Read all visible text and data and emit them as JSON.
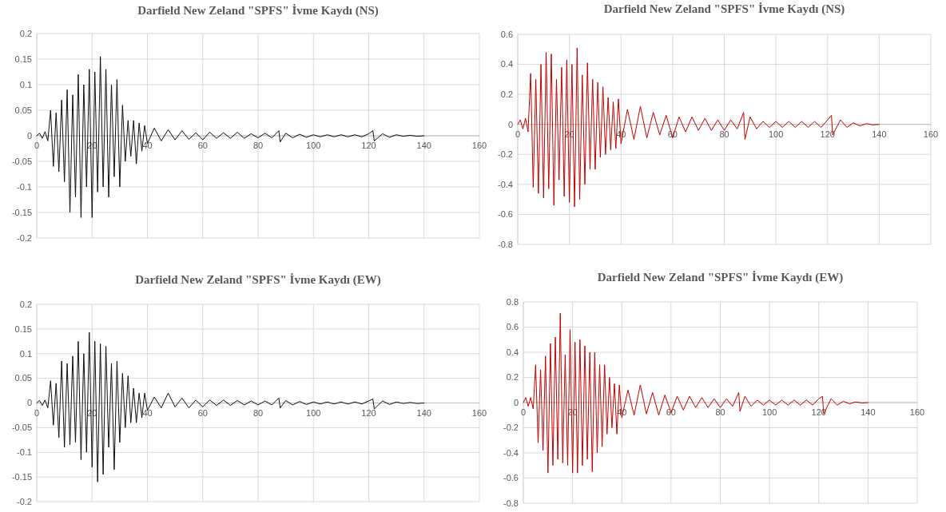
{
  "chart_data": [
    {
      "type": "line",
      "title": "Darfield New Zeland  \"SPFS\" İvme Kaydı (NS)",
      "xlim": [
        0,
        160
      ],
      "xticks": [
        0,
        20,
        40,
        60,
        80,
        100,
        120,
        140,
        160
      ],
      "ylim": [
        -0.2,
        0.2
      ],
      "yticks": [
        -0.2,
        -0.15,
        -0.1,
        -0.05,
        0,
        0.05,
        0.1,
        0.15,
        0.2
      ],
      "grid": true,
      "marker": "none",
      "line_style": "solid",
      "series": [
        {
          "color": "#0d0d0d",
          "x": [
            0,
            1,
            2,
            3,
            4,
            5,
            6,
            7,
            8,
            9,
            10,
            11,
            12,
            13,
            14,
            15,
            16,
            17,
            18,
            19,
            20,
            21,
            22,
            23,
            24,
            25,
            26,
            27,
            28,
            29,
            30,
            31,
            32,
            33,
            34,
            35,
            36,
            37,
            38,
            39,
            40,
            42.5,
            45,
            47.5,
            50,
            52.5,
            55,
            57.5,
            60,
            62.5,
            65,
            67.5,
            70,
            72.5,
            75,
            77.5,
            80,
            82.5,
            85,
            87.5,
            88,
            90,
            92.5,
            95,
            97.5,
            100,
            102.5,
            105,
            107.5,
            110,
            112.5,
            115,
            117.5,
            120,
            121.5,
            122,
            125,
            127.5,
            130,
            132.5,
            135,
            137.5,
            140
          ],
          "values": [
            0,
            0.005,
            -0.005,
            0.008,
            -0.01,
            0.05,
            -0.06,
            0.045,
            -0.07,
            0.07,
            -0.09,
            0.09,
            -0.15,
            0.08,
            -0.12,
            0.12,
            -0.16,
            0.1,
            -0.1,
            0.13,
            -0.16,
            0.125,
            -0.11,
            0.155,
            -0.1,
            0.13,
            -0.12,
            0.1,
            -0.08,
            0.11,
            -0.1,
            0.06,
            -0.05,
            0.03,
            -0.04,
            0.03,
            -0.055,
            0.025,
            -0.03,
            0.02,
            -0.015,
            0.015,
            -0.01,
            0.012,
            -0.008,
            0.01,
            -0.007,
            0.006,
            -0.008,
            0.007,
            -0.005,
            0.006,
            -0.005,
            0.007,
            -0.005,
            0.004,
            -0.004,
            0.005,
            -0.004,
            0.01,
            -0.012,
            0.005,
            -0.004,
            0.003,
            -0.003,
            0.002,
            -0.002,
            0.002,
            -0.002,
            0.002,
            -0.002,
            0.002,
            -0.002,
            0.004,
            0.01,
            -0.01,
            0.004,
            -0.003,
            0.002,
            -0.001,
            0.001,
            -0.001,
            0
          ]
        }
      ]
    },
    {
      "type": "line",
      "title": "Darfield New Zeland  \"SPFS\" İvme Kaydı (NS)",
      "xlim": [
        0,
        160
      ],
      "xticks": [
        0,
        20,
        40,
        60,
        80,
        100,
        120,
        140,
        160
      ],
      "ylim": [
        -0.8,
        0.6
      ],
      "yticks": [
        -0.8,
        -0.6,
        -0.4,
        -0.2,
        0,
        0.2,
        0.4,
        0.6
      ],
      "grid": true,
      "marker": "none",
      "line_style": "solid",
      "series": [
        {
          "color": "#c00000",
          "x": [
            0,
            1,
            2,
            3,
            4,
            5,
            6,
            7,
            8,
            9,
            10,
            11,
            12,
            13,
            14,
            15,
            16,
            17,
            18,
            19,
            20,
            21,
            22,
            23,
            24,
            25,
            26,
            27,
            28,
            29,
            30,
            31,
            32,
            33,
            34,
            35,
            36,
            37,
            38,
            39,
            40,
            42.5,
            45,
            47.5,
            50,
            52.5,
            55,
            57.5,
            60,
            62.5,
            65,
            67.5,
            70,
            72.5,
            75,
            77.5,
            80,
            82.5,
            85,
            87.5,
            88,
            90,
            92.5,
            95,
            97.5,
            100,
            102.5,
            105,
            107.5,
            110,
            112.5,
            115,
            117.5,
            120,
            121.5,
            122,
            125,
            127.5,
            130,
            132.5,
            135,
            137.5,
            140
          ],
          "values": [
            0,
            0.03,
            -0.03,
            0.04,
            -0.05,
            0.34,
            -0.42,
            0.3,
            -0.46,
            0.4,
            -0.49,
            0.48,
            -0.43,
            0.47,
            -0.54,
            0.3,
            -0.37,
            0.38,
            -0.48,
            0.43,
            -0.52,
            0.4,
            -0.55,
            0.51,
            -0.5,
            0.33,
            -0.4,
            0.41,
            -0.3,
            0.3,
            -0.3,
            0.28,
            -0.22,
            0.25,
            -0.2,
            0.18,
            -0.17,
            0.15,
            -0.16,
            0.17,
            -0.13,
            0.1,
            -0.1,
            0.12,
            -0.09,
            0.08,
            -0.07,
            0.06,
            -0.09,
            0.05,
            -0.05,
            0.05,
            -0.04,
            0.04,
            -0.04,
            0.03,
            -0.04,
            0.03,
            -0.03,
            0.08,
            -0.1,
            0.05,
            -0.03,
            0.02,
            -0.02,
            0.02,
            -0.02,
            0.02,
            -0.02,
            0.02,
            -0.02,
            0.02,
            -0.02,
            0.03,
            0.06,
            -0.07,
            0.03,
            -0.02,
            0.01,
            -0.01,
            0.005,
            -0.003,
            0
          ]
        }
      ]
    },
    {
      "type": "line",
      "title": "Darfield New Zeland  \"SPFS\" İvme Kaydı (EW)",
      "xlim": [
        0,
        160
      ],
      "xticks": [
        0,
        20,
        40,
        60,
        80,
        100,
        120,
        140,
        160
      ],
      "ylim": [
        -0.2,
        0.2
      ],
      "yticks": [
        -0.2,
        -0.15,
        -0.1,
        -0.05,
        0,
        0.05,
        0.1,
        0.15,
        0.2
      ],
      "grid": true,
      "marker": "none",
      "line_style": "solid",
      "series": [
        {
          "color": "#0d0d0d",
          "x": [
            0,
            1,
            2,
            3,
            4,
            5,
            6,
            7,
            8,
            9,
            10,
            11,
            12,
            13,
            14,
            15,
            16,
            17,
            18,
            19,
            20,
            21,
            22,
            23,
            24,
            25,
            26,
            27,
            28,
            29,
            30,
            31,
            32,
            33,
            34,
            35,
            36,
            37,
            38,
            39,
            40,
            42.5,
            45,
            47.5,
            50,
            52.5,
            55,
            57.5,
            60,
            62.5,
            65,
            67.5,
            70,
            72.5,
            75,
            77.5,
            80,
            82.5,
            85,
            87.5,
            88,
            90,
            92.5,
            95,
            97.5,
            100,
            102.5,
            105,
            107.5,
            110,
            112.5,
            115,
            117.5,
            120,
            121.5,
            122,
            125,
            127.5,
            130,
            132.5,
            135,
            137.5,
            140
          ],
          "values": [
            0,
            0.005,
            -0.005,
            0.006,
            -0.01,
            0.045,
            -0.045,
            0.04,
            -0.07,
            0.085,
            -0.09,
            0.08,
            -0.085,
            0.095,
            -0.08,
            0.125,
            -0.115,
            0.1,
            -0.1,
            0.143,
            -0.13,
            0.125,
            -0.16,
            0.12,
            -0.145,
            0.115,
            -0.09,
            0.08,
            -0.135,
            0.085,
            -0.08,
            0.06,
            -0.05,
            0.055,
            -0.04,
            0.03,
            -0.04,
            0.02,
            -0.03,
            0.02,
            -0.015,
            0.012,
            -0.01,
            0.02,
            -0.008,
            0.01,
            -0.01,
            0.006,
            -0.008,
            0.006,
            -0.005,
            0.006,
            -0.005,
            0.005,
            -0.004,
            0.004,
            -0.004,
            0.004,
            -0.004,
            0.01,
            -0.01,
            0.005,
            -0.004,
            0.003,
            -0.003,
            0.002,
            -0.002,
            0.002,
            -0.002,
            0.002,
            -0.002,
            0.002,
            -0.002,
            0.004,
            0.008,
            -0.012,
            0.004,
            -0.003,
            0.002,
            -0.001,
            0.001,
            -0.001,
            0
          ]
        }
      ]
    },
    {
      "type": "line",
      "title": "Darfield New Zeland \"SPFS\" İvme Kaydı (EW)",
      "xlim": [
        0,
        160
      ],
      "xticks": [
        0,
        20,
        40,
        60,
        80,
        100,
        120,
        140,
        160
      ],
      "ylim": [
        -0.8,
        0.8
      ],
      "yticks": [
        -0.8,
        -0.6,
        -0.4,
        -0.2,
        0,
        0.2,
        0.4,
        0.6,
        0.8
      ],
      "grid": true,
      "marker": "none",
      "line_style": "solid",
      "series": [
        {
          "color": "#c00000",
          "x": [
            0,
            1,
            2,
            3,
            4,
            5,
            6,
            7,
            8,
            9,
            10,
            11,
            12,
            13,
            14,
            15,
            16,
            17,
            18,
            19,
            20,
            21,
            22,
            23,
            24,
            25,
            26,
            27,
            28,
            29,
            30,
            31,
            32,
            33,
            34,
            35,
            36,
            37,
            38,
            39,
            40,
            42.5,
            45,
            47.5,
            50,
            52.5,
            55,
            57.5,
            60,
            62.5,
            65,
            67.5,
            70,
            72.5,
            75,
            77.5,
            80,
            82.5,
            85,
            87.5,
            88,
            90,
            92.5,
            95,
            97.5,
            100,
            102.5,
            105,
            107.5,
            110,
            112.5,
            115,
            117.5,
            120,
            121.5,
            122,
            125,
            127.5,
            130,
            132.5,
            135,
            137.5,
            140
          ],
          "values": [
            0,
            0.04,
            -0.03,
            0.04,
            -0.05,
            0.3,
            -0.32,
            0.26,
            -0.38,
            0.37,
            -0.56,
            0.47,
            -0.5,
            0.52,
            -0.45,
            0.71,
            -0.48,
            0.38,
            -0.5,
            0.58,
            -0.56,
            0.48,
            -0.56,
            0.5,
            -0.5,
            0.45,
            -0.45,
            0.4,
            -0.55,
            0.4,
            -0.4,
            0.3,
            -0.35,
            0.3,
            -0.25,
            0.2,
            -0.2,
            0.15,
            -0.25,
            0.14,
            -0.12,
            0.1,
            -0.1,
            0.14,
            -0.09,
            0.08,
            -0.1,
            0.06,
            -0.08,
            0.05,
            -0.06,
            0.05,
            -0.04,
            0.04,
            -0.04,
            0.03,
            -0.04,
            0.03,
            -0.03,
            0.08,
            -0.07,
            0.05,
            -0.03,
            0.02,
            -0.02,
            0.02,
            -0.02,
            0.02,
            -0.02,
            0.02,
            -0.02,
            0.02,
            -0.02,
            0.03,
            0.05,
            -0.09,
            0.03,
            -0.02,
            0.01,
            -0.01,
            0.005,
            -0.003,
            0
          ]
        }
      ]
    }
  ]
}
